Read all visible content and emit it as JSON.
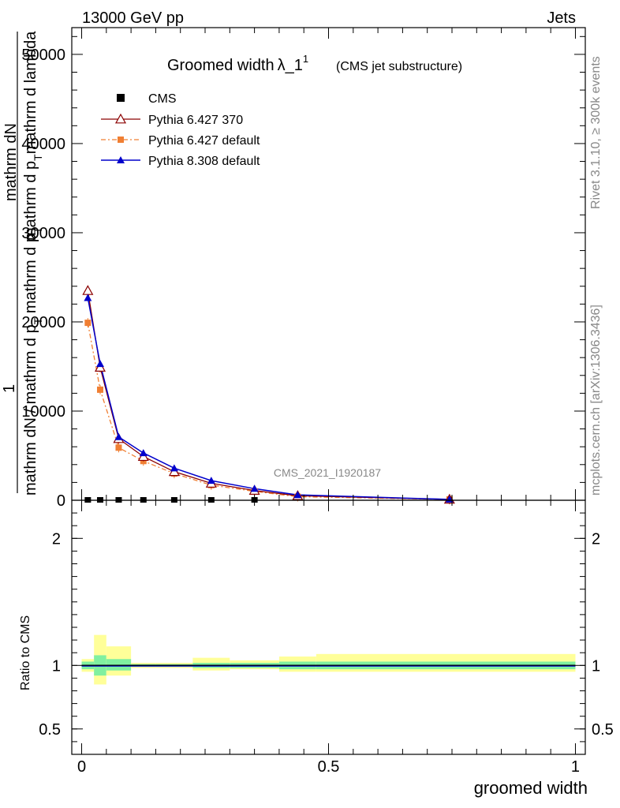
{
  "header": {
    "left": "13000 GeV pp",
    "right": "Jets"
  },
  "title": {
    "main": "Groomed width",
    "lambda": "λ_1",
    "sup": "1",
    "sub": "(CMS jet substructure)"
  },
  "side_text": {
    "rivet": "Rivet 3.1.10, ≥ 300k events",
    "mcplots": "mcplots.cern.ch [arXiv:1306.3436]"
  },
  "watermark": "CMS_2021_I1920187",
  "y_label": {
    "one": "1",
    "line1": "mathrm dN",
    "line2": "mathrm d p",
    "line2_sub": "T",
    "line2_rest": "mathrm d lambda",
    "den1": "mathrm dN / mathrm d p",
    "den1_sub": "T",
    "den1_rest": " mathrm d p",
    "den1_sub2": "T"
  },
  "ratio_ylabel": "Ratio to CMS",
  "x_label": "groomed width",
  "legend": [
    {
      "name": "CMS",
      "style": "data"
    },
    {
      "name": "Pythia 6.427 370",
      "style": "open-triangle"
    },
    {
      "name": "Pythia 6.427 default",
      "style": "square-dashdot"
    },
    {
      "name": "Pythia 8.308 default",
      "style": "filled-triangle"
    }
  ],
  "colors": {
    "cms": "#000000",
    "p6_370": "#8b0000",
    "p6_default": "#f07f33",
    "p8": "#0000cc",
    "band_inner": "#80f0a0",
    "band_outer": "#ffff99"
  },
  "chart_data": {
    "type": "line",
    "xlim": [
      -0.02,
      1.02
    ],
    "ylim": [
      0,
      53000
    ],
    "x_ticks": [
      0,
      0.5,
      1
    ],
    "x_tick_labels": [
      "0",
      "0.5",
      "1"
    ],
    "y_ticks": [
      0,
      10000,
      20000,
      30000,
      40000,
      50000
    ],
    "y_tick_labels": [
      "0",
      "10000",
      "20000",
      "30000",
      "40000",
      "50000"
    ],
    "x": [
      0.0125,
      0.0375,
      0.075,
      0.125,
      0.1875,
      0.2625,
      0.35,
      0.4375,
      0.745
    ],
    "series": [
      {
        "name": "CMS",
        "values": [
          0,
          0,
          0,
          0,
          0,
          0,
          0,
          null,
          null
        ]
      },
      {
        "name": "Pythia 6.427 370",
        "values": [
          23500,
          14900,
          6900,
          4900,
          3200,
          1900,
          1100,
          500,
          100
        ]
      },
      {
        "name": "Pythia 6.427 default",
        "values": [
          19900,
          12400,
          5900,
          4400,
          3000,
          1700,
          1000,
          400,
          100
        ]
      },
      {
        "name": "Pythia 8.308 default",
        "values": [
          22700,
          15300,
          7100,
          5300,
          3600,
          2200,
          1300,
          600,
          100
        ]
      }
    ],
    "ratio": {
      "ylim": [
        0.3,
        2.3
      ],
      "y_ticks": [
        0.5,
        1,
        2
      ],
      "y_tick_labels": [
        "0.5",
        "1",
        "2"
      ],
      "bins": [
        [
          0.0,
          0.025,
          0.97,
          1.03,
          0.95,
          1.05
        ],
        [
          0.025,
          0.05,
          0.92,
          1.08,
          0.85,
          1.24
        ],
        [
          0.05,
          0.1,
          0.96,
          1.05,
          0.92,
          1.15
        ],
        [
          0.1,
          0.15,
          0.99,
          1.01,
          0.98,
          1.02
        ],
        [
          0.15,
          0.225,
          0.99,
          1.01,
          0.98,
          1.02
        ],
        [
          0.225,
          0.3,
          0.98,
          1.02,
          0.96,
          1.06
        ],
        [
          0.3,
          0.4,
          0.98,
          1.02,
          0.97,
          1.04
        ],
        [
          0.4,
          0.475,
          0.97,
          1.03,
          0.95,
          1.07
        ],
        [
          0.475,
          1.0,
          0.97,
          1.03,
          0.95,
          1.09
        ]
      ]
    }
  }
}
